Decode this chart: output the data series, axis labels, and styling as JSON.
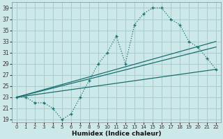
{
  "xlabel": "Humidex (Indice chaleur)",
  "xlim": [
    -0.5,
    22.5
  ],
  "ylim": [
    18.5,
    40
  ],
  "yticks": [
    19,
    21,
    23,
    25,
    27,
    29,
    31,
    33,
    35,
    37,
    39
  ],
  "xticks": [
    0,
    1,
    2,
    3,
    4,
    5,
    6,
    7,
    8,
    9,
    10,
    11,
    12,
    13,
    14,
    15,
    16,
    17,
    18,
    19,
    20,
    21,
    22
  ],
  "bg_color": "#cce8e8",
  "grid_color": "#aacccc",
  "line_color": "#1a6e6e",
  "line1_x": [
    0,
    1,
    2,
    3,
    4,
    5,
    6,
    7,
    8,
    9,
    10,
    11,
    12,
    13,
    14,
    15,
    16,
    17,
    18,
    19,
    20,
    21,
    22
  ],
  "line1_y": [
    23,
    23,
    22,
    22,
    21,
    19,
    20,
    23,
    26,
    29,
    31,
    34,
    29,
    36,
    38,
    39,
    39,
    37,
    36,
    33,
    32,
    30,
    28
  ],
  "line2_x": [
    0,
    22
  ],
  "line2_y": [
    23,
    28
  ],
  "line3_x": [
    0,
    22
  ],
  "line3_y": [
    23,
    32
  ],
  "line4_x": [
    0,
    22
  ],
  "line4_y": [
    23,
    33
  ]
}
